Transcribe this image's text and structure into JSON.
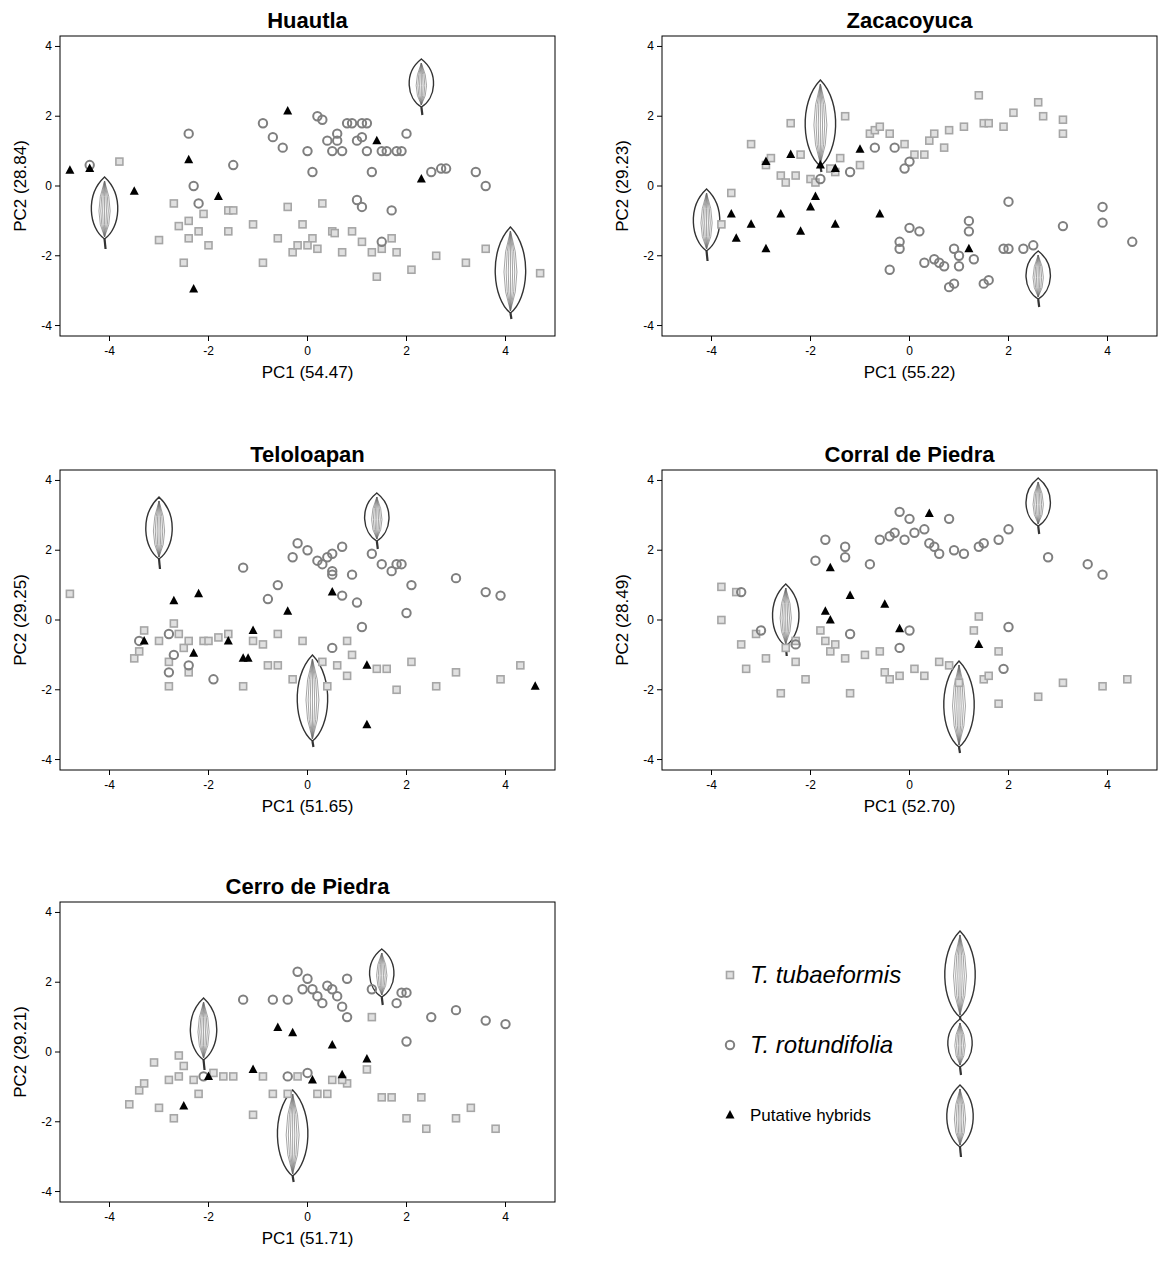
{
  "chart_data": [
    {
      "type": "scatter",
      "title": "Huautla",
      "x_label": "PC1 (54.47)",
      "y_label": "PC2 (28.84)",
      "xlim": [
        -5,
        5
      ],
      "ylim": [
        -4.3,
        4.3
      ],
      "xticks": [
        -4,
        -2,
        0,
        2,
        4
      ],
      "yticks": [
        -4,
        -2,
        0,
        2,
        4
      ],
      "series": [
        {
          "x": [
            -3.8,
            -3.0,
            -2.6,
            -2.4,
            -2.4,
            -2.5,
            -2.2,
            -2.1,
            -2.0,
            -2.7,
            -1.6,
            -1.6,
            -1.5,
            -1.1,
            -0.9,
            -0.6,
            -0.4,
            -0.3,
            -0.2,
            -0.1,
            0.1,
            0.2,
            0.3,
            0.5,
            0.55,
            0.7,
            0.9,
            1.1,
            1.3,
            1.4,
            1.5,
            1.7,
            2.1,
            2.6,
            3.2,
            3.6,
            4.7,
            0.0,
            1.8
          ],
          "values": [
            0.7,
            -1.55,
            -1.15,
            -1.0,
            -1.5,
            -2.2,
            -1.3,
            -0.8,
            -1.7,
            -0.5,
            -1.3,
            -0.7,
            -0.7,
            -1.1,
            -2.2,
            -1.5,
            -0.6,
            -1.9,
            -1.7,
            -1.1,
            -1.5,
            -1.8,
            -0.5,
            -1.3,
            -1.35,
            -1.9,
            -1.3,
            -1.6,
            -1.9,
            -2.6,
            -1.8,
            -1.5,
            -2.4,
            -2.0,
            -2.2,
            -1.8,
            -2.5,
            -1.7,
            -1.9
          ]
        },
        {
          "x": [
            -4.4,
            -2.4,
            -2.3,
            -2.2,
            -1.5,
            -0.9,
            -0.7,
            0.0,
            0.1,
            0.2,
            0.3,
            0.4,
            0.5,
            0.6,
            0.6,
            0.7,
            0.8,
            0.9,
            1.0,
            1.1,
            1.2,
            1.1,
            1.2,
            1.3,
            1.5,
            1.6,
            1.5,
            1.0,
            1.1,
            1.8,
            1.9,
            2.0,
            2.5,
            2.7,
            2.8,
            3.4,
            3.6,
            1.7,
            -0.5
          ],
          "values": [
            0.6,
            1.5,
            0.0,
            -0.5,
            0.6,
            1.8,
            1.4,
            1.0,
            0.4,
            2.0,
            1.9,
            1.3,
            1.0,
            1.3,
            1.5,
            1.0,
            1.8,
            1.8,
            1.3,
            1.8,
            1.8,
            1.4,
            1.0,
            0.4,
            1.0,
            1.0,
            -1.6,
            -0.4,
            -0.6,
            1.0,
            1.0,
            1.5,
            0.4,
            0.5,
            0.5,
            0.4,
            0.0,
            -0.7,
            1.1
          ]
        },
        {
          "x": [
            -4.8,
            -4.4,
            -3.5,
            -2.4,
            -2.3,
            -1.8,
            -0.4,
            1.4,
            2.3
          ],
          "values": [
            0.45,
            0.5,
            -0.15,
            0.75,
            -2.95,
            -0.3,
            2.15,
            1.3,
            0.2
          ]
        }
      ]
    },
    {
      "type": "scatter",
      "title": "Zacacoyuca",
      "x_label": "PC1 (55.22)",
      "y_label": "PC2 (29.23)",
      "xlim": [
        -5,
        5
      ],
      "ylim": [
        -4.3,
        4.3
      ],
      "xticks": [
        -4,
        -2,
        0,
        2,
        4
      ],
      "yticks": [
        -4,
        -2,
        0,
        2,
        4
      ],
      "series": [
        {
          "x": [
            -3.8,
            -3.6,
            -3.2,
            -2.9,
            -2.8,
            -2.6,
            -2.5,
            -2.4,
            -2.3,
            -2.2,
            -2.0,
            -1.9,
            -1.5,
            -1.3,
            -1.0,
            -0.8,
            -0.7,
            -0.6,
            -0.4,
            -0.1,
            0.1,
            0.3,
            0.4,
            0.5,
            0.7,
            0.8,
            1.1,
            1.4,
            1.5,
            1.6,
            1.9,
            2.1,
            2.6,
            2.7,
            3.1,
            3.1,
            -1.6,
            -1.4
          ],
          "values": [
            -1.1,
            -0.2,
            1.2,
            0.6,
            0.8,
            0.3,
            0.1,
            1.8,
            0.3,
            0.9,
            0.2,
            0.1,
            0.4,
            2.0,
            0.6,
            1.5,
            1.6,
            1.7,
            1.5,
            1.2,
            0.9,
            0.9,
            1.3,
            1.5,
            1.1,
            1.6,
            1.7,
            2.6,
            1.8,
            1.8,
            1.7,
            2.1,
            2.4,
            2.0,
            1.9,
            1.5,
            0.5,
            0.8
          ]
        },
        {
          "x": [
            -1.2,
            -0.7,
            -0.3,
            -0.1,
            0.0,
            -0.2,
            -0.4,
            -0.2,
            0.0,
            0.2,
            0.3,
            0.5,
            0.6,
            0.7,
            0.8,
            0.9,
            0.9,
            1.0,
            1.0,
            1.2,
            1.2,
            1.3,
            1.5,
            1.6,
            1.9,
            2.0,
            2.0,
            2.3,
            2.5,
            3.1,
            3.9,
            3.9,
            4.5,
            -1.8
          ],
          "values": [
            0.4,
            1.1,
            1.1,
            0.5,
            0.7,
            -1.6,
            -2.4,
            -1.8,
            -1.2,
            -1.3,
            -2.2,
            -2.1,
            -2.2,
            -2.3,
            -2.9,
            -2.8,
            -1.8,
            -2.0,
            -2.3,
            -1.0,
            -1.3,
            -2.1,
            -2.8,
            -2.7,
            -1.8,
            -1.8,
            -0.45,
            -1.8,
            -1.7,
            -1.15,
            -0.6,
            -1.05,
            -1.6,
            0.2
          ]
        },
        {
          "x": [
            -3.6,
            -3.5,
            -3.2,
            -2.9,
            -2.9,
            -2.6,
            -2.4,
            -2.2,
            -2.0,
            -1.9,
            -1.8,
            -1.5,
            -1.5,
            -1.0,
            -0.6,
            1.2
          ],
          "values": [
            -0.8,
            -1.5,
            -1.1,
            -1.8,
            0.7,
            -0.8,
            0.9,
            -1.3,
            -0.6,
            -0.3,
            0.6,
            0.5,
            -1.1,
            1.05,
            -0.8,
            -1.8
          ]
        }
      ]
    },
    {
      "type": "scatter",
      "title": "Teloloapan",
      "x_label": "PC1 (51.65)",
      "y_label": "PC2 (29.25)",
      "xlim": [
        -5,
        5
      ],
      "ylim": [
        -4.3,
        4.3
      ],
      "xticks": [
        -4,
        -2,
        0,
        2,
        4
      ],
      "yticks": [
        -4,
        -2,
        0,
        2,
        4
      ],
      "series": [
        {
          "x": [
            -4.8,
            -3.5,
            -3.4,
            -3.3,
            -3.0,
            -2.8,
            -2.8,
            -2.7,
            -2.6,
            -2.5,
            -2.4,
            -2.4,
            -2.1,
            -2.0,
            -1.8,
            -1.6,
            -1.3,
            -1.1,
            -0.9,
            -0.8,
            -0.6,
            -0.6,
            -0.3,
            -0.1,
            0.4,
            0.6,
            0.8,
            0.8,
            0.9,
            1.4,
            1.6,
            1.8,
            2.1,
            2.6,
            3.0,
            3.9,
            4.3,
            0.3
          ],
          "values": [
            0.75,
            -1.1,
            -0.9,
            -0.3,
            -0.6,
            -1.2,
            -1.9,
            -0.1,
            -0.4,
            -0.8,
            -0.6,
            -1.5,
            -0.6,
            -0.6,
            -0.5,
            -0.4,
            -1.9,
            -0.6,
            -0.7,
            -1.3,
            -1.3,
            -0.4,
            -1.7,
            -0.6,
            -1.9,
            -1.3,
            -0.6,
            -1.6,
            -1.0,
            -1.4,
            -1.4,
            -2.0,
            -1.2,
            -1.9,
            -1.5,
            -1.7,
            -1.3,
            -1.2
          ]
        },
        {
          "x": [
            -3.4,
            -2.8,
            -2.8,
            -2.7,
            -2.4,
            -1.9,
            -1.3,
            -0.8,
            -0.6,
            -0.3,
            -0.2,
            0.0,
            0.2,
            0.3,
            0.4,
            0.5,
            0.5,
            0.5,
            0.7,
            0.7,
            0.9,
            1.1,
            1.3,
            1.5,
            1.7,
            1.8,
            1.9,
            2.0,
            2.1,
            3.0,
            3.6,
            3.9,
            0.5,
            1.0
          ],
          "values": [
            -0.6,
            -0.4,
            -1.5,
            -1.0,
            -1.3,
            -1.7,
            1.5,
            0.6,
            1.0,
            1.8,
            2.2,
            2.0,
            1.7,
            1.6,
            1.8,
            1.4,
            1.3,
            1.9,
            2.1,
            0.7,
            1.3,
            -0.2,
            1.9,
            1.6,
            1.4,
            1.6,
            1.6,
            0.2,
            1.0,
            1.2,
            0.8,
            0.7,
            -0.8,
            0.5
          ]
        },
        {
          "x": [
            -3.3,
            -2.7,
            -2.3,
            -2.2,
            -1.6,
            -1.3,
            -1.2,
            -1.1,
            -0.4,
            0.5,
            1.2,
            1.2,
            4.6
          ],
          "values": [
            -0.6,
            0.55,
            -0.95,
            0.75,
            -0.6,
            -1.1,
            -1.1,
            -0.3,
            0.25,
            0.8,
            -1.3,
            -3.0,
            -1.9
          ]
        }
      ]
    },
    {
      "type": "scatter",
      "title": "Corral de Piedra",
      "x_label": "PC1 (52.70)",
      "y_label": "PC2 (28.49)",
      "xlim": [
        -5,
        5
      ],
      "ylim": [
        -4.3,
        4.3
      ],
      "xticks": [
        -4,
        -2,
        0,
        2,
        4
      ],
      "yticks": [
        -4,
        -2,
        0,
        2,
        4
      ],
      "series": [
        {
          "x": [
            -3.8,
            -3.8,
            -3.5,
            -3.4,
            -3.3,
            -3.1,
            -2.9,
            -2.6,
            -2.5,
            -2.3,
            -2.3,
            -2.1,
            -1.8,
            -1.7,
            -1.6,
            -1.5,
            -1.3,
            -1.2,
            -0.9,
            -0.6,
            -0.5,
            -0.4,
            -0.2,
            0.1,
            0.3,
            0.6,
            0.8,
            1.0,
            1.4,
            1.5,
            1.6,
            1.8,
            1.8,
            2.6,
            3.1,
            3.9,
            4.4,
            1.3
          ],
          "values": [
            0.95,
            0.0,
            0.8,
            -0.7,
            -1.4,
            -0.4,
            -1.1,
            -2.1,
            -0.8,
            -1.2,
            -0.6,
            -1.7,
            -0.3,
            -0.6,
            -0.9,
            -0.7,
            -1.1,
            -2.1,
            -1.0,
            -0.9,
            -1.5,
            -1.7,
            -1.6,
            -1.4,
            -1.6,
            -1.2,
            -1.3,
            -1.8,
            0.1,
            -1.7,
            -1.6,
            -2.4,
            -0.9,
            -2.2,
            -1.8,
            -1.9,
            -1.7,
            -0.3
          ]
        },
        {
          "x": [
            -3.4,
            -3.0,
            -2.3,
            -1.9,
            -1.7,
            -1.3,
            -1.3,
            -1.2,
            -0.8,
            -0.6,
            -0.4,
            -0.3,
            -0.2,
            -0.1,
            0.0,
            0.1,
            0.3,
            0.4,
            0.5,
            0.6,
            0.8,
            0.9,
            1.1,
            1.4,
            1.5,
            1.8,
            2.0,
            2.8,
            3.6,
            3.9,
            -0.2,
            1.9,
            2.0,
            0.0
          ],
          "values": [
            0.8,
            -0.3,
            -0.7,
            1.7,
            2.3,
            2.1,
            1.8,
            -0.4,
            1.6,
            2.3,
            2.4,
            2.5,
            3.1,
            2.3,
            2.9,
            2.5,
            2.6,
            2.2,
            2.1,
            1.9,
            2.9,
            2.0,
            1.9,
            2.1,
            2.2,
            2.3,
            2.6,
            1.8,
            1.6,
            1.3,
            -0.8,
            -1.4,
            -0.2,
            -0.3
          ]
        },
        {
          "x": [
            -1.6,
            -1.7,
            -1.6,
            -1.2,
            -0.5,
            -0.2,
            0.4,
            1.4
          ],
          "values": [
            1.5,
            0.25,
            0.0,
            0.7,
            0.45,
            -0.25,
            3.05,
            -0.7
          ]
        }
      ]
    },
    {
      "type": "scatter",
      "title": "Cerro de Piedra",
      "x_label": "PC1 (51.71)",
      "y_label": "PC2 (29.21)",
      "xlim": [
        -5,
        5
      ],
      "ylim": [
        -4.3,
        4.3
      ],
      "xticks": [
        -4,
        -2,
        0,
        2,
        4
      ],
      "yticks": [
        -4,
        -2,
        0,
        2,
        4
      ],
      "series": [
        {
          "x": [
            -3.6,
            -3.4,
            -3.3,
            -3.1,
            -3.0,
            -2.8,
            -2.7,
            -2.6,
            -2.6,
            -2.5,
            -2.3,
            -2.2,
            -1.9,
            -1.7,
            -1.5,
            -1.1,
            -0.7,
            -0.4,
            -0.2,
            0.2,
            0.4,
            0.5,
            0.8,
            1.2,
            1.3,
            1.5,
            1.7,
            2.0,
            2.3,
            2.4,
            3.0,
            3.3,
            3.8,
            0.7,
            -0.9
          ],
          "values": [
            -1.5,
            -1.1,
            -0.9,
            -0.3,
            -1.6,
            -0.8,
            -1.9,
            -0.1,
            -0.7,
            -0.4,
            -0.8,
            -1.2,
            -0.6,
            -0.7,
            -0.7,
            -1.8,
            -1.2,
            -1.2,
            -0.7,
            -1.2,
            -1.2,
            -0.8,
            -0.9,
            -0.5,
            1.0,
            -1.3,
            -1.3,
            -1.9,
            -1.3,
            -2.2,
            -1.9,
            -1.6,
            -2.2,
            -0.8,
            -0.7
          ]
        },
        {
          "x": [
            -1.3,
            -0.7,
            -0.4,
            -0.2,
            -0.1,
            0.0,
            0.1,
            0.2,
            0.3,
            0.4,
            0.5,
            0.6,
            0.7,
            0.8,
            0.8,
            1.3,
            1.8,
            1.9,
            2.0,
            2.0,
            2.5,
            3.0,
            3.6,
            4.0,
            -0.4,
            0.0,
            -2.1
          ],
          "values": [
            1.5,
            1.5,
            1.5,
            2.3,
            1.8,
            2.1,
            1.8,
            1.6,
            1.4,
            1.9,
            1.8,
            1.6,
            1.3,
            2.1,
            1.0,
            1.8,
            1.4,
            1.7,
            0.3,
            1.7,
            1.0,
            1.2,
            0.9,
            0.8,
            -0.7,
            -0.6,
            -0.7
          ]
        },
        {
          "x": [
            -2.5,
            -2.0,
            -1.1,
            -0.6,
            -0.3,
            0.1,
            0.5,
            0.7,
            1.2
          ],
          "values": [
            -1.55,
            -0.7,
            -0.5,
            0.7,
            0.55,
            -0.8,
            0.2,
            -0.65,
            -0.2
          ]
        }
      ]
    }
  ],
  "legend_entries": [
    {
      "name": "T. tubaeformis",
      "color": "#a6a6a6",
      "marker": "square"
    },
    {
      "name": "T. rotundifolia",
      "color": "#7f7f7f",
      "marker": "circle"
    },
    {
      "name": "Putative hybrids",
      "color": "#000000",
      "marker": "triangle"
    }
  ]
}
